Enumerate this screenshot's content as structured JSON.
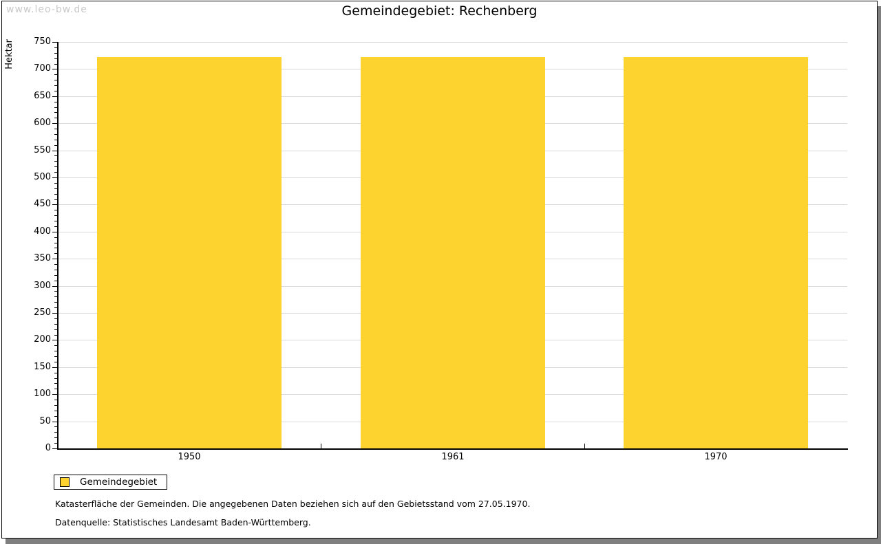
{
  "watermark": "www.leo-bw.de",
  "title": "Gemeindegebiet: Rechenberg",
  "chart_data": {
    "type": "bar",
    "title": "Gemeindegebiet: Rechenberg",
    "categories": [
      "1950",
      "1961",
      "1970"
    ],
    "series": [
      {
        "name": "Gemeindegebiet",
        "values": [
          722,
          722,
          722
        ]
      }
    ],
    "xlabel": "",
    "ylabel": "Hektar",
    "ylim": [
      0,
      750
    ],
    "y_major_step": 50,
    "y_minor_step": 10,
    "grid": "horizontal-major-only",
    "legend_position": "bottom-left",
    "bar_color": "#FCD32F"
  },
  "legend": {
    "items": [
      {
        "label": "Gemeindegebiet",
        "color": "#FCD32F"
      }
    ]
  },
  "footnotes": [
    "Katasterfläche der Gemeinden. Die angegebenen Daten beziehen sich auf den Gebietsstand vom 27.05.1970.",
    "Datenquelle: Statistisches Landesamt Baden-Württemberg."
  ],
  "colors": {
    "bar": "#FCD32F",
    "gridline": "#D9D9D9",
    "axis": "#000000",
    "watermark_text": "#C9C9C9",
    "page_shadow": "#7F7F7F",
    "background": "#FFFFFF"
  }
}
